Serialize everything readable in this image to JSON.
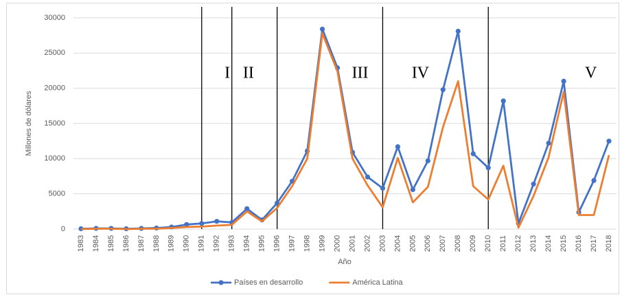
{
  "chart_data": {
    "type": "line",
    "y_label": "Millones de dólares",
    "x_label": "Año",
    "categories": [
      "1983",
      "1984",
      "1985",
      "1986",
      "1987",
      "1988",
      "1989",
      "1990",
      "1991",
      "1992",
      "1993",
      "1994",
      "1995",
      "1996",
      "1997",
      "1998",
      "1999",
      "2000",
      "2001",
      "2002",
      "2003",
      "2004",
      "2005",
      "2006",
      "2007",
      "2008",
      "2009",
      "2010",
      "2011",
      "2012",
      "2013",
      "2014",
      "2015",
      "2016",
      "2017",
      "2018"
    ],
    "series": [
      {
        "name": "Países en desarrollo",
        "color": "#4472c4",
        "markers": true,
        "values": [
          50,
          100,
          100,
          50,
          100,
          150,
          300,
          650,
          800,
          1100,
          950,
          2900,
          1300,
          3700,
          6800,
          11100,
          28400,
          22900,
          10900,
          7400,
          5800,
          11700,
          5600,
          9700,
          19800,
          28100,
          10700,
          8700,
          18200,
          800,
          6400,
          12200,
          21000,
          2400,
          6900,
          12500
        ]
      },
      {
        "name": "América Latina",
        "color": "#ed7d31",
        "markers": false,
        "values": [
          0,
          50,
          50,
          0,
          50,
          50,
          150,
          300,
          350,
          500,
          600,
          2500,
          1100,
          3000,
          6100,
          10000,
          27800,
          22400,
          10000,
          6200,
          3100,
          10100,
          3800,
          6000,
          14500,
          21000,
          6100,
          4200,
          9000,
          200,
          4700,
          10200,
          19500,
          2000,
          2000,
          10500
        ]
      }
    ],
    "dividers": [
      "1991",
      "1993",
      "1996",
      "2003",
      "2010"
    ],
    "periods": [
      "I",
      "II",
      "III",
      "IV",
      "V"
    ],
    "ylim": [
      0,
      30000
    ],
    "yticks": [
      0,
      5000,
      10000,
      15000,
      20000,
      25000,
      30000
    ],
    "grid": true,
    "legend": "bottom"
  }
}
